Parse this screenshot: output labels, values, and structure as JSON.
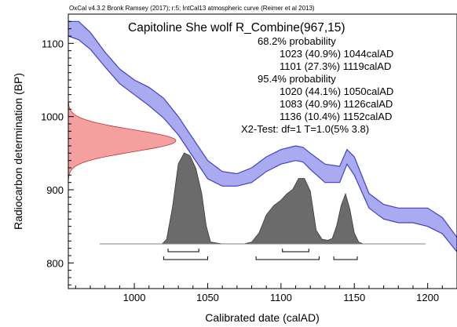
{
  "chart_data": {
    "type": "area",
    "header": "OxCal v4.3.2 Bronk Ramsey (2017); r:5; IntCal13 atmospheric curve (Reimer et al 2013)",
    "title": "Capitoline She wolf R_Combine(967,15)",
    "xlabel": "Calibrated date (calAD)",
    "ylabel": "Radiocarbon determination (BP)",
    "xlim": [
      955,
      1220
    ],
    "ylim": [
      765,
      1140
    ],
    "x_ticks": [
      1000,
      1050,
      1100,
      1150,
      1200
    ],
    "y_ticks": [
      800,
      900,
      1000,
      1100
    ],
    "grid": false,
    "annotations": [
      "68.2% probability",
      "1023 (40.9%) 1044calAD",
      "1101 (27.3%) 1119calAD",
      "95.4% probability",
      "1020 (44.1%) 1050calAD",
      "1083 (40.9%) 1126calAD",
      "1136 (10.4%) 1152calAD",
      "X2-Test: df=1 T=1.0(5% 3.8)"
    ],
    "calibration_curve": {
      "x": [
        955,
        962,
        970,
        980,
        990,
        1000,
        1010,
        1020,
        1030,
        1040,
        1050,
        1060,
        1070,
        1080,
        1090,
        1100,
        1110,
        1115,
        1120,
        1130,
        1140,
        1145,
        1150,
        1160,
        1170,
        1180,
        1190,
        1200,
        1210,
        1220
      ],
      "upper": [
        1130,
        1130,
        1115,
        1088,
        1065,
        1050,
        1040,
        1025,
        1000,
        970,
        940,
        925,
        922,
        930,
        945,
        955,
        960,
        958,
        950,
        935,
        932,
        955,
        945,
        895,
        880,
        875,
        875,
        875,
        862,
        835
      ],
      "lower": [
        1110,
        1105,
        1092,
        1068,
        1045,
        1030,
        1015,
        998,
        975,
        945,
        915,
        905,
        905,
        910,
        925,
        935,
        940,
        938,
        928,
        910,
        910,
        935,
        920,
        875,
        860,
        855,
        855,
        850,
        840,
        815
      ]
    },
    "radiocarbon_distribution": {
      "mean": 967,
      "sd": 15,
      "color": "#f08080"
    },
    "calibrated_distribution": {
      "x": [
        1019,
        1022,
        1026,
        1030,
        1034,
        1038,
        1042,
        1046,
        1049,
        1052,
        1060,
        1075,
        1080,
        1085,
        1090,
        1095,
        1100,
        1104,
        1108,
        1112,
        1116,
        1120,
        1124,
        1128,
        1132,
        1135,
        1138,
        1141,
        1144,
        1147,
        1150,
        1153,
        1156
      ],
      "density": [
        0,
        0.05,
        0.4,
        0.88,
        1.0,
        0.97,
        0.83,
        0.55,
        0.2,
        0.02,
        0,
        0,
        0.02,
        0.12,
        0.32,
        0.42,
        0.48,
        0.55,
        0.6,
        0.72,
        0.72,
        0.58,
        0.15,
        0.05,
        0.04,
        0.06,
        0.2,
        0.42,
        0.55,
        0.38,
        0.12,
        0.02,
        0
      ],
      "color": "#6b6b6b"
    },
    "ranges_68": [
      [
        1023,
        1044
      ],
      [
        1101,
        1119
      ]
    ],
    "ranges_95": [
      [
        1020,
        1050
      ],
      [
        1083,
        1126
      ],
      [
        1136,
        1152
      ]
    ],
    "curve_color": "#9b9bef",
    "curve_edge_color": "#4040c8"
  }
}
